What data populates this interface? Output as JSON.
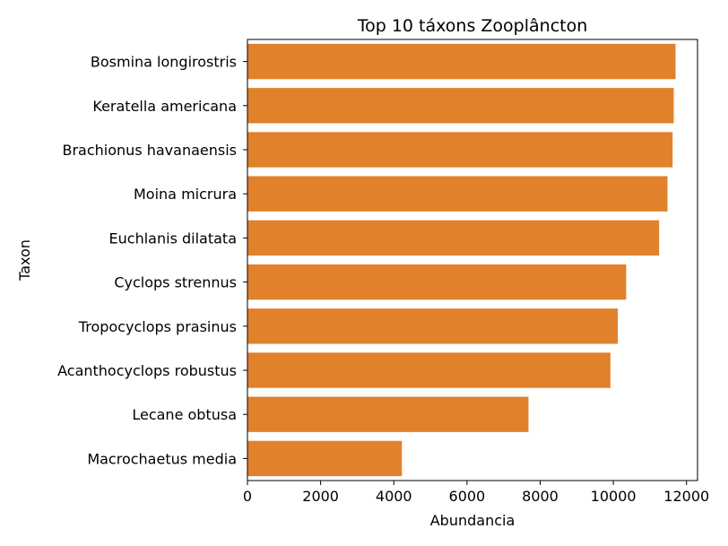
{
  "chart_data": {
    "type": "bar",
    "orientation": "horizontal",
    "title": "Top 10 táxons Zooplâncton",
    "xlabel": "Abundancia",
    "ylabel": "Taxon",
    "categories": [
      "Bosmina longirostris",
      "Keratella americana",
      "Brachionus havanaensis",
      "Moina micrura",
      "Euchlanis dilatata",
      "Cyclops strennus",
      "Tropocyclops prasinus",
      "Acanthocyclops robustus",
      "Lecane obtusa",
      "Macrochaetus media"
    ],
    "values": [
      11700,
      11650,
      11620,
      11480,
      11250,
      10350,
      10120,
      9920,
      7680,
      4220
    ],
    "xlim": [
      0,
      12300
    ],
    "xticks": [
      0,
      2000,
      4000,
      6000,
      8000,
      10000,
      12000
    ],
    "xtick_labels": [
      "0",
      "2000",
      "4000",
      "6000",
      "8000",
      "10000",
      "12000"
    ],
    "bar_color": "#e1812c",
    "grid": false,
    "legend": false
  }
}
